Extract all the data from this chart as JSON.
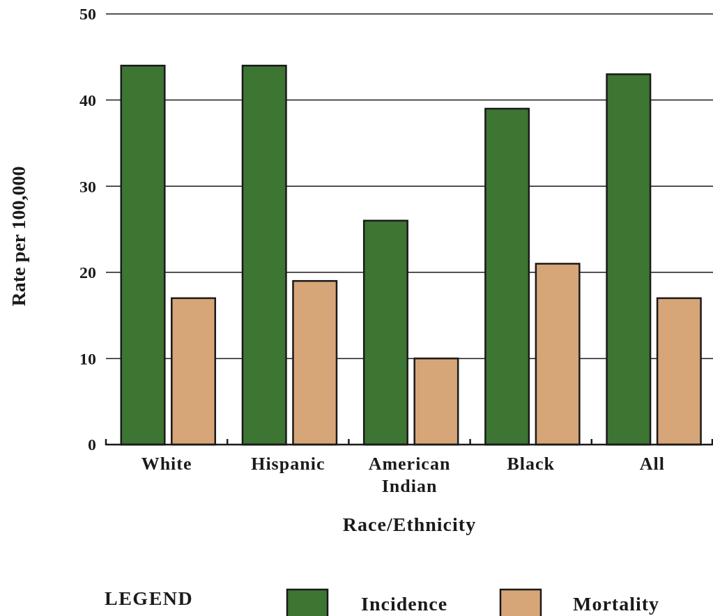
{
  "chart_data": {
    "type": "bar",
    "xlabel": "Race/Ethnicity",
    "ylabel": "Rate per 100,000",
    "legend_title": "LEGEND",
    "categories": [
      "White",
      "Hispanic",
      "American Indian",
      "Black",
      "All"
    ],
    "series": [
      {
        "name": "Incidence",
        "color": "#3d7533",
        "values": [
          44,
          44,
          26,
          39,
          43
        ]
      },
      {
        "name": "Mortality",
        "color": "#d6a578",
        "values": [
          17,
          19,
          10,
          21,
          17
        ]
      }
    ],
    "ylim": [
      0,
      50
    ],
    "yticks": [
      0,
      10,
      20,
      30,
      40,
      50
    ],
    "grid": "y",
    "legend": "bottom"
  }
}
